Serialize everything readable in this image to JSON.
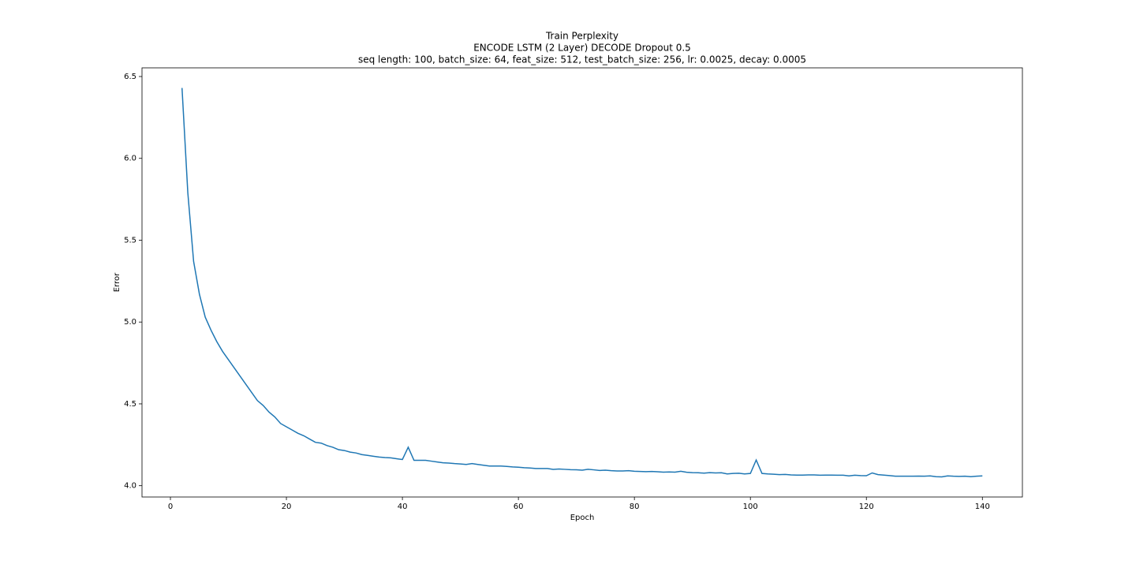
{
  "chart_data": {
    "type": "line",
    "title": "Train Perplexity",
    "subtitle": [
      "ENCODE LSTM (2 Layer) DECODE Dropout 0.5",
      "seq length: 100, batch_size: 64, feat_size: 512, test_batch_size: 256, lr: 0.0025, decay: 0.0005"
    ],
    "xlabel": "Epoch",
    "ylabel": "Error",
    "x": [
      2,
      3,
      4,
      5,
      6,
      7,
      8,
      9,
      10,
      11,
      12,
      13,
      14,
      15,
      16,
      17,
      18,
      19,
      20,
      21,
      22,
      23,
      24,
      25,
      26,
      27,
      28,
      29,
      30,
      31,
      32,
      33,
      34,
      35,
      36,
      37,
      38,
      39,
      40,
      41,
      42,
      43,
      44,
      45,
      46,
      47,
      48,
      49,
      50,
      51,
      52,
      53,
      54,
      55,
      56,
      57,
      58,
      59,
      60,
      61,
      62,
      63,
      64,
      65,
      66,
      67,
      68,
      69,
      70,
      71,
      72,
      73,
      74,
      75,
      76,
      77,
      78,
      79,
      80,
      81,
      82,
      83,
      84,
      85,
      86,
      87,
      88,
      89,
      90,
      91,
      92,
      93,
      94,
      95,
      96,
      97,
      98,
      99,
      100,
      101,
      102,
      103,
      104,
      105,
      106,
      107,
      108,
      109,
      110,
      111,
      112,
      113,
      114,
      115,
      116,
      117,
      118,
      119,
      120,
      121,
      122,
      123,
      124,
      125,
      126,
      127,
      128,
      129,
      130,
      131,
      132,
      133,
      134,
      135,
      136,
      137,
      138,
      139,
      140
    ],
    "series": [
      {
        "name": "Train",
        "color": "#1f77b4",
        "values": [
          6.43,
          5.79,
          5.37,
          5.17,
          5.03,
          4.95,
          4.88,
          4.82,
          4.77,
          4.72,
          4.67,
          4.62,
          4.57,
          4.52,
          4.49,
          4.45,
          4.42,
          4.38,
          4.36,
          4.34,
          4.32,
          4.305,
          4.285,
          4.265,
          4.26,
          4.245,
          4.235,
          4.22,
          4.215,
          4.205,
          4.2,
          4.19,
          4.185,
          4.18,
          4.175,
          4.172,
          4.17,
          4.165,
          4.16,
          4.235,
          4.155,
          4.155,
          4.155,
          4.15,
          4.145,
          4.14,
          4.138,
          4.135,
          4.133,
          4.13,
          4.135,
          4.13,
          4.125,
          4.12,
          4.12,
          4.12,
          4.118,
          4.115,
          4.113,
          4.11,
          4.108,
          4.105,
          4.105,
          4.105,
          4.1,
          4.102,
          4.1,
          4.098,
          4.097,
          4.095,
          4.1,
          4.097,
          4.093,
          4.095,
          4.092,
          4.09,
          4.09,
          4.092,
          4.088,
          4.087,
          4.086,
          4.087,
          4.085,
          4.083,
          4.084,
          4.083,
          4.088,
          4.082,
          4.08,
          4.079,
          4.077,
          4.08,
          4.078,
          4.079,
          4.072,
          4.075,
          4.076,
          4.072,
          4.075,
          4.157,
          4.075,
          4.072,
          4.07,
          4.068,
          4.069,
          4.066,
          4.065,
          4.065,
          4.066,
          4.066,
          4.064,
          4.065,
          4.065,
          4.064,
          4.064,
          4.06,
          4.064,
          4.062,
          4.061,
          4.078,
          4.068,
          4.065,
          4.062,
          4.058,
          4.058,
          4.058,
          4.058,
          4.059,
          4.058,
          4.06,
          4.055,
          4.054,
          4.06,
          4.058,
          4.057,
          4.058,
          4.055,
          4.058,
          4.06
        ]
      }
    ],
    "xlim": [
      -4.9,
      146.9
    ],
    "ylim": [
      3.931,
      6.553
    ],
    "xticks": [
      0,
      20,
      40,
      60,
      80,
      100,
      120,
      140
    ],
    "yticks": [
      {
        "value": 4.0,
        "label": "4.0"
      },
      {
        "value": 4.5,
        "label": "4.5"
      },
      {
        "value": 5.0,
        "label": "5.0"
      },
      {
        "value": 5.5,
        "label": "5.5"
      },
      {
        "value": 6.0,
        "label": "6.0"
      },
      {
        "value": 6.5,
        "label": "6.5"
      }
    ],
    "grid": false
  }
}
